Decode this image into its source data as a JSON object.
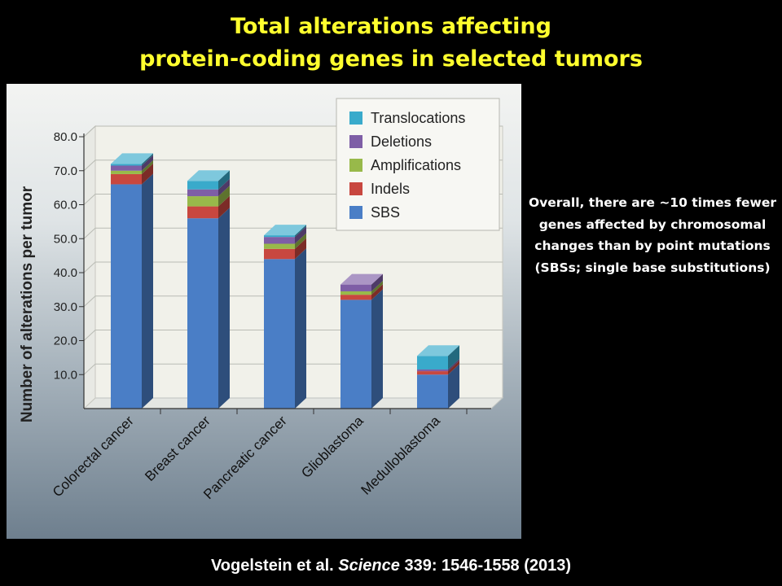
{
  "slide": {
    "title_line1": "Total alterations affecting",
    "title_line2": "protein-coding genes in selected tumors",
    "note": "Overall, there are ~10 times fewer genes affected by chromosomal changes than by point mutations (SBSs; single base substitutions)",
    "citation": {
      "authors": "Vogelstein et al.",
      "journal": "Science",
      "details": "339: 1546-1558 (2013)"
    }
  },
  "chart_data": {
    "type": "bar",
    "stacked": true,
    "three_d": true,
    "title": "",
    "xlabel": "",
    "ylabel": "Number of alterations per tumor",
    "ylim": [
      0,
      80
    ],
    "yticks": [
      "10.0",
      "20.0",
      "30.0",
      "40.0",
      "50.0",
      "60.0",
      "70.0",
      "80.0"
    ],
    "categories": [
      "Colorectal cancer",
      "Breast cancer",
      "Pancreatic cancer",
      "Glioblastoma",
      "Medulloblastoma"
    ],
    "series": [
      {
        "name": "SBS",
        "color": "#4a7ec6",
        "values": [
          66,
          56,
          44,
          32,
          10
        ]
      },
      {
        "name": "Indels",
        "color": "#c8473f",
        "values": [
          3,
          3.5,
          3,
          1.5,
          1
        ]
      },
      {
        "name": "Amplifications",
        "color": "#98b94a",
        "values": [
          1,
          3,
          1.5,
          1,
          0
        ]
      },
      {
        "name": "Deletions",
        "color": "#7e5ea6",
        "values": [
          1.5,
          2,
          2,
          2,
          0.5
        ]
      },
      {
        "name": "Translocations",
        "color": "#39aacb",
        "values": [
          0.5,
          2.5,
          0.5,
          0,
          4
        ]
      }
    ],
    "legend_order": [
      "Translocations",
      "Deletions",
      "Amplifications",
      "Indels",
      "SBS"
    ],
    "legend_position": "top-right",
    "grid": true
  }
}
